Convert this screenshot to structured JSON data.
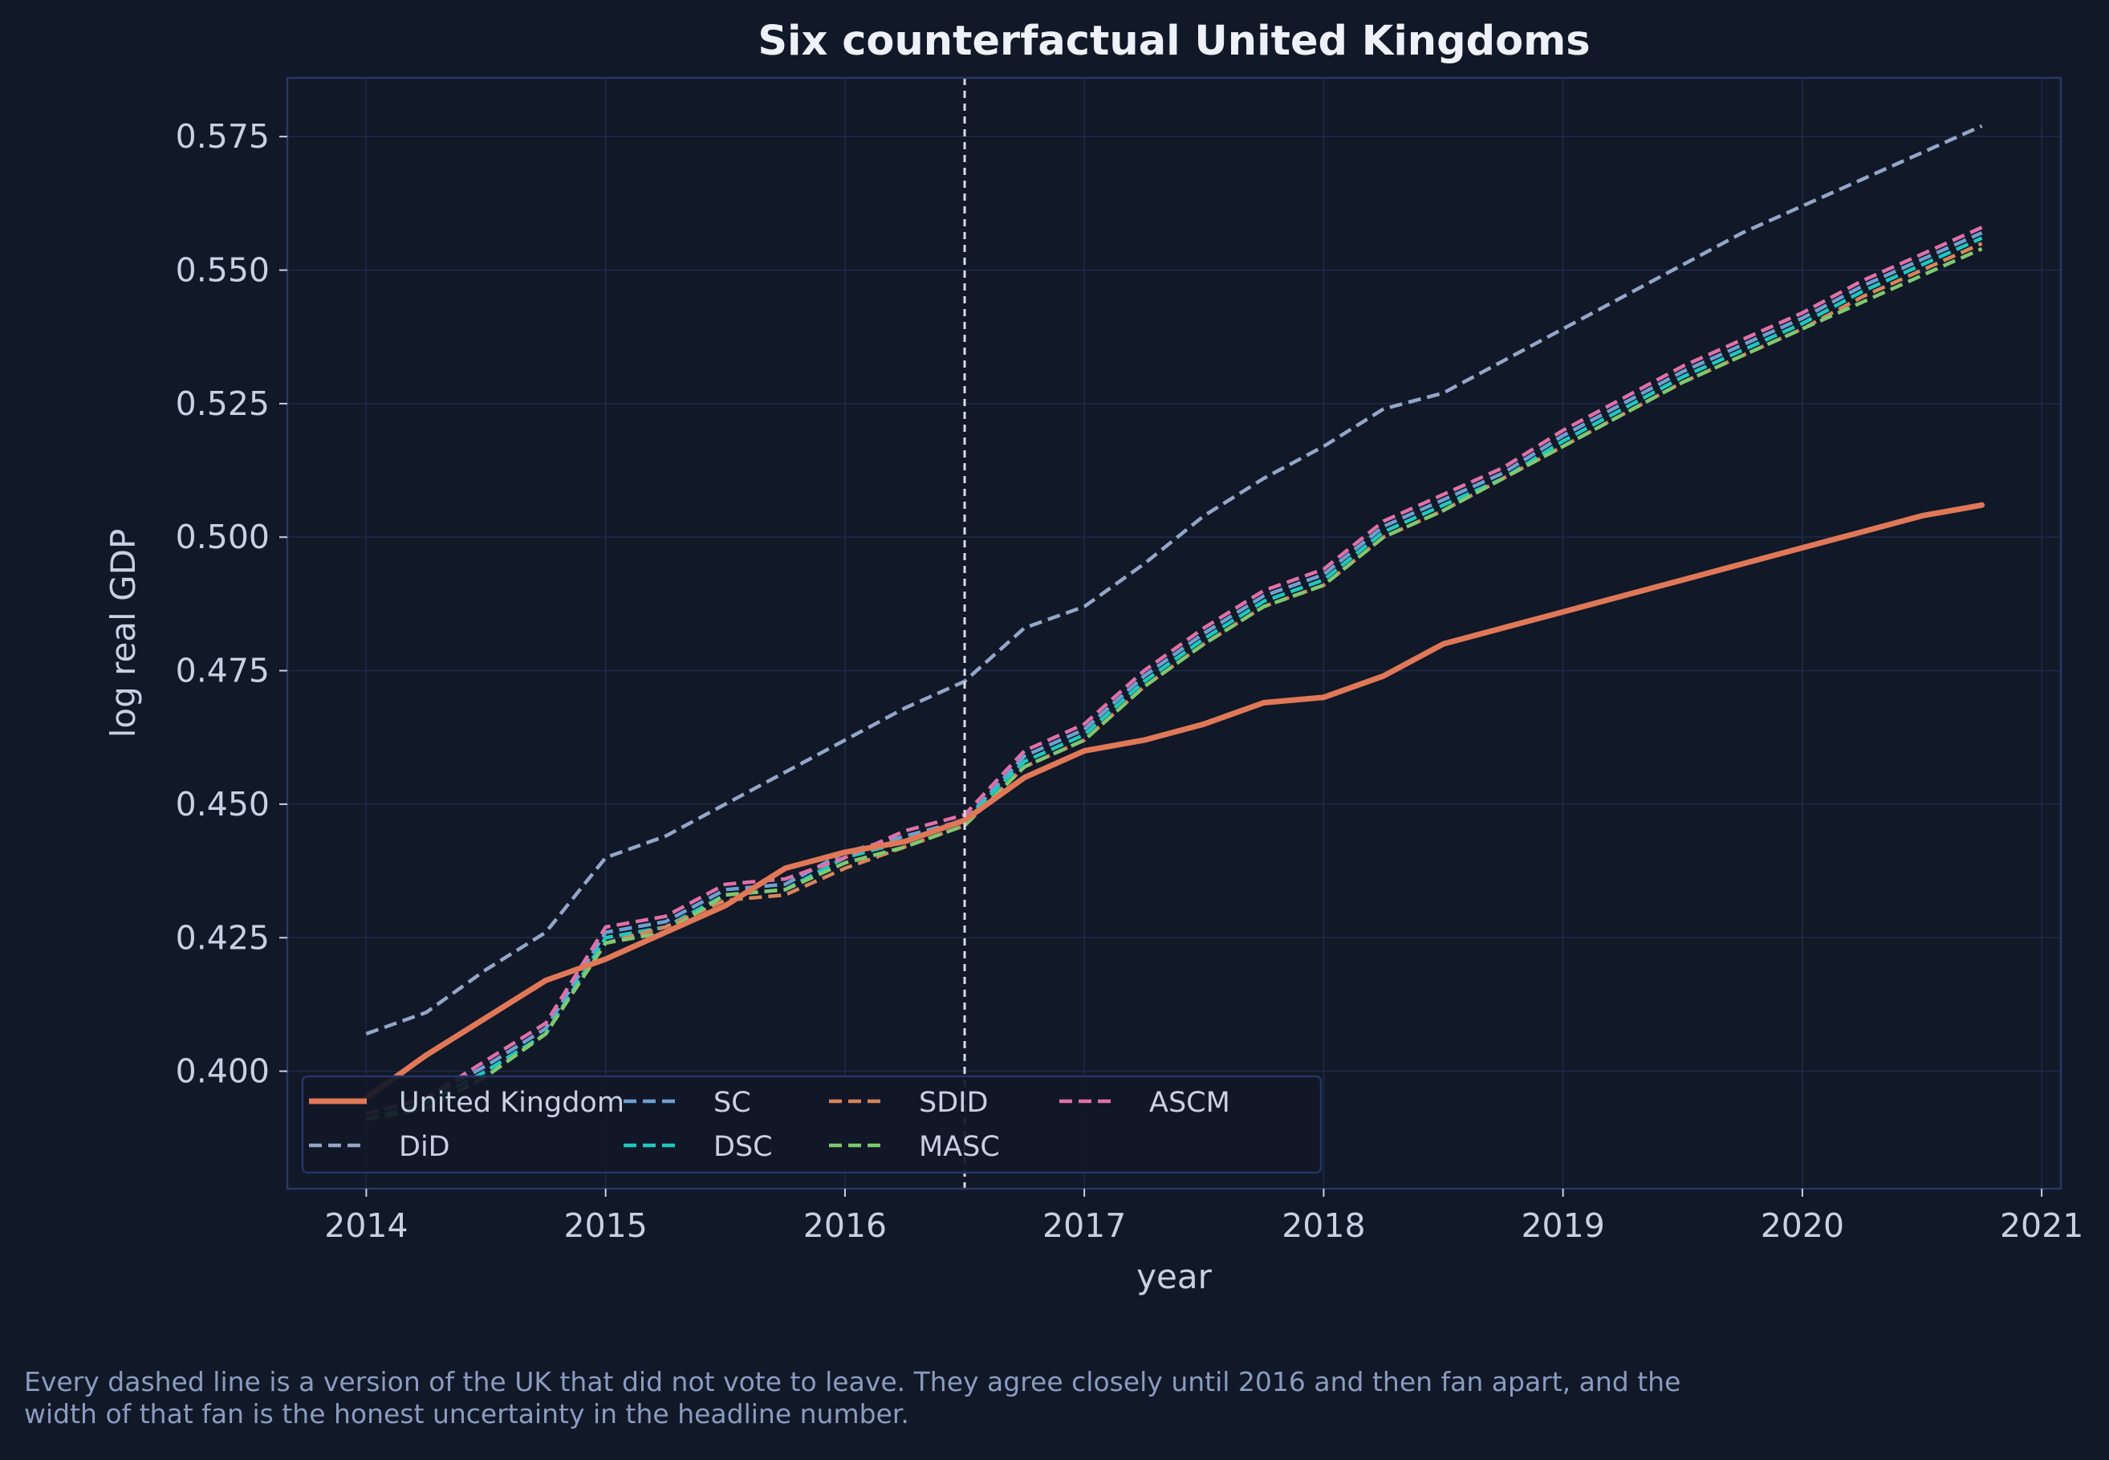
{
  "caption": {
    "line1": "Every dashed line is a version of the UK that did not vote to leave. They agree closely until 2016 and then fan apart, and the",
    "line2": "width of that fan is the honest uncertainty in the headline number."
  },
  "colors": {
    "background": "#111827",
    "grid": "#1e2a4a",
    "axis_text": "#c8d0e2",
    "title_text": "#eef1f8",
    "treatment_line": "#d8dbe6"
  },
  "chart_data": {
    "type": "line",
    "title": "Six counterfactual United Kingdoms",
    "xlabel": "year",
    "ylabel": "log real GDP",
    "xlim": [
      2013.67,
      2021.08
    ],
    "ylim": [
      0.378,
      0.586
    ],
    "xticks": [
      2014,
      2015,
      2016,
      2017,
      2018,
      2019,
      2020,
      2021
    ],
    "xtick_labels": [
      "2014",
      "2015",
      "2016",
      "2017",
      "2018",
      "2019",
      "2020",
      "2021"
    ],
    "yticks": [
      0.4,
      0.425,
      0.45,
      0.475,
      0.5,
      0.525,
      0.55,
      0.575
    ],
    "ytick_labels": [
      "0.400",
      "0.425",
      "0.450",
      "0.475",
      "0.500",
      "0.525",
      "0.550",
      "0.575"
    ],
    "grid": true,
    "treatment_date": 2016.5,
    "legend": {
      "placement": "lower-left",
      "columns": 4
    },
    "x": [
      2014.0,
      2014.25,
      2014.5,
      2014.75,
      2015.0,
      2015.25,
      2015.5,
      2015.75,
      2016.0,
      2016.25,
      2016.5,
      2016.75,
      2017.0,
      2017.25,
      2017.5,
      2017.75,
      2018.0,
      2018.25,
      2018.5,
      2018.75,
      2019.0,
      2019.25,
      2019.5,
      2019.75,
      2020.0,
      2020.25,
      2020.5,
      2020.75
    ],
    "series": [
      {
        "name": "United Kingdom",
        "color": "#e07858",
        "style": "solid",
        "values": [
          0.395,
          0.403,
          0.41,
          0.417,
          0.421,
          0.426,
          0.431,
          0.438,
          0.441,
          0.443,
          0.447,
          0.455,
          0.46,
          0.462,
          0.465,
          0.469,
          0.47,
          0.474,
          0.48,
          0.483,
          0.486,
          0.489,
          0.492,
          0.495,
          0.498,
          0.501,
          0.504,
          0.506
        ]
      },
      {
        "name": "DiD",
        "color": "#94a6c8",
        "style": "dashed",
        "values": [
          0.407,
          0.411,
          0.419,
          0.426,
          0.44,
          0.444,
          0.45,
          0.456,
          0.462,
          0.468,
          0.473,
          0.483,
          0.487,
          0.495,
          0.504,
          0.511,
          0.517,
          0.524,
          0.527,
          0.533,
          0.539,
          0.545,
          0.551,
          0.557,
          0.562,
          0.567,
          0.572,
          0.577
        ]
      },
      {
        "name": "SC",
        "color": "#6f9fd0",
        "style": "dashed",
        "values": [
          0.392,
          0.395,
          0.401,
          0.408,
          0.426,
          0.428,
          0.434,
          0.435,
          0.441,
          0.444,
          0.447,
          0.459,
          0.464,
          0.474,
          0.482,
          0.489,
          0.493,
          0.502,
          0.507,
          0.512,
          0.519,
          0.525,
          0.531,
          0.536,
          0.541,
          0.547,
          0.552,
          0.557
        ]
      },
      {
        "name": "DSC",
        "color": "#1ec8c0",
        "style": "dashed",
        "values": [
          0.391,
          0.394,
          0.4,
          0.407,
          0.425,
          0.427,
          0.433,
          0.434,
          0.44,
          0.443,
          0.447,
          0.458,
          0.463,
          0.473,
          0.481,
          0.488,
          0.492,
          0.501,
          0.506,
          0.511,
          0.518,
          0.524,
          0.53,
          0.535,
          0.54,
          0.546,
          0.551,
          0.556
        ]
      },
      {
        "name": "SDID",
        "color": "#d8845c",
        "style": "dashed",
        "values": [
          0.391,
          0.393,
          0.399,
          0.407,
          0.424,
          0.427,
          0.432,
          0.433,
          0.438,
          0.442,
          0.446,
          0.457,
          0.462,
          0.472,
          0.48,
          0.487,
          0.491,
          0.5,
          0.505,
          0.511,
          0.517,
          0.523,
          0.529,
          0.534,
          0.539,
          0.545,
          0.55,
          0.555
        ]
      },
      {
        "name": "MASC",
        "color": "#7ec870",
        "style": "dashed",
        "values": [
          0.391,
          0.393,
          0.399,
          0.407,
          0.424,
          0.426,
          0.433,
          0.434,
          0.439,
          0.442,
          0.446,
          0.457,
          0.462,
          0.472,
          0.48,
          0.487,
          0.491,
          0.5,
          0.505,
          0.511,
          0.517,
          0.523,
          0.529,
          0.534,
          0.539,
          0.544,
          0.549,
          0.554
        ]
      },
      {
        "name": "ASCM",
        "color": "#e070a8",
        "style": "dashed",
        "values": [
          0.392,
          0.395,
          0.402,
          0.409,
          0.427,
          0.429,
          0.435,
          0.436,
          0.44,
          0.445,
          0.448,
          0.46,
          0.465,
          0.475,
          0.483,
          0.49,
          0.494,
          0.503,
          0.508,
          0.513,
          0.52,
          0.526,
          0.532,
          0.537,
          0.542,
          0.548,
          0.553,
          0.558
        ]
      }
    ]
  }
}
